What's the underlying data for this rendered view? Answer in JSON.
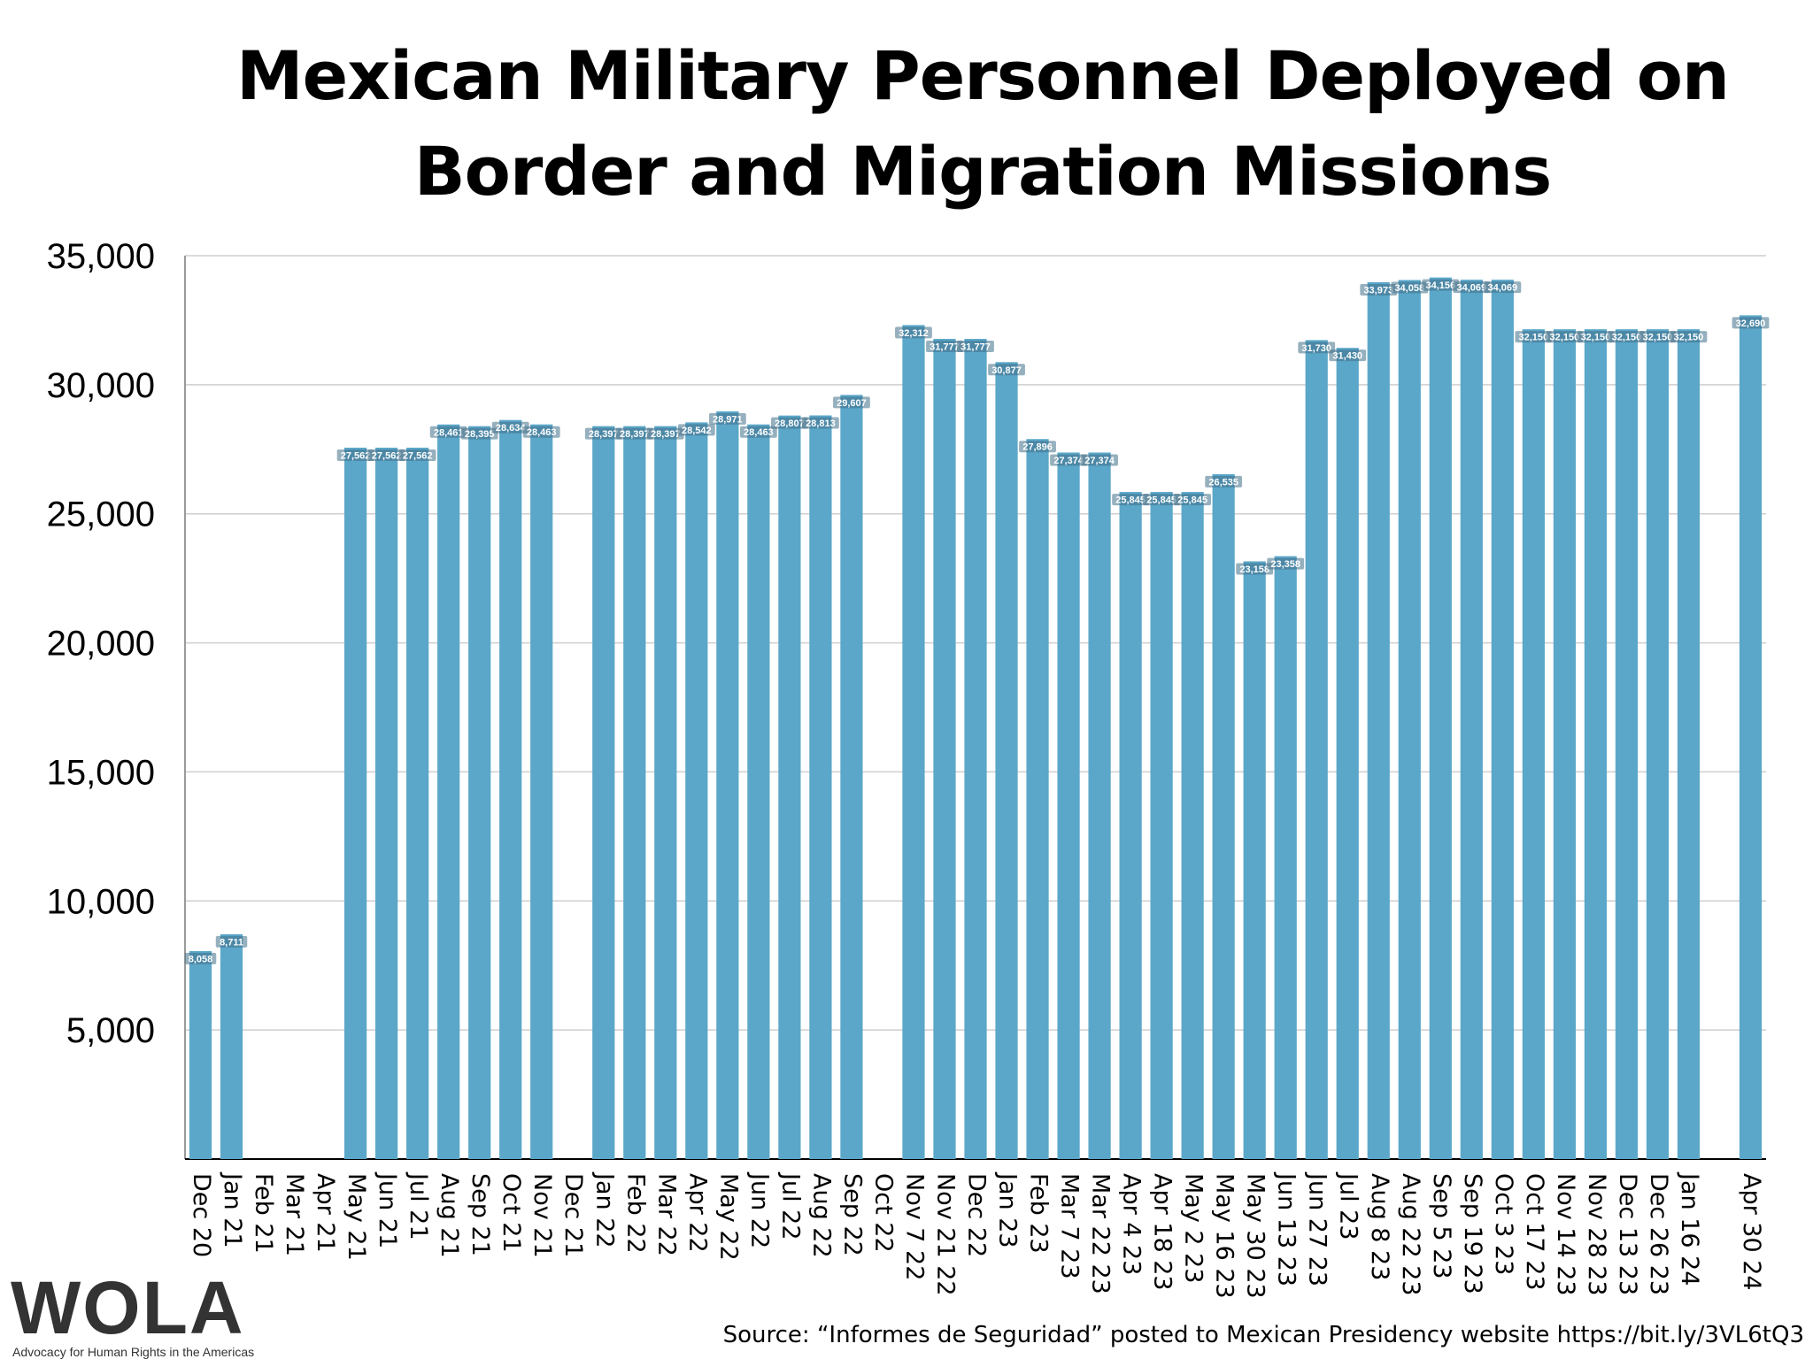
{
  "chart_data": {
    "type": "bar",
    "title_lines": [
      "Mexican Military Personnel Deployed on",
      "Border and Migration Missions"
    ],
    "ylim": [
      0,
      35000
    ],
    "yticks": [
      "5,000",
      "10,000",
      "15,000",
      "20,000",
      "25,000",
      "30,000",
      "35,000"
    ],
    "ytick_values": [
      5000,
      10000,
      15000,
      20000,
      25000,
      30000,
      35000
    ],
    "grid": true,
    "bar_color": "#5ba7c9",
    "categories": [
      "Dec 20",
      "Jan 21",
      "Feb 21",
      "Mar 21",
      "Apr 21",
      "May 21",
      "Jun 21",
      "Jul 21",
      "Aug 21",
      "Sep 21",
      "Oct 21",
      "Nov 21",
      "Dec 21",
      "Jan 22",
      "Feb 22",
      "Mar 22",
      "Apr 22",
      "May 22",
      "Jun 22",
      "Jul 22",
      "Aug 22",
      "Sep 22",
      "Oct 22",
      "Nov 7 22",
      "Nov 21 22",
      "Dec 22",
      "Jan 23",
      "Feb 23",
      "Mar 7 23",
      "Mar 22 23",
      "Apr 4 23",
      "Apr 18 23",
      "May 2 23",
      "May 16 23",
      "May 30 23",
      "Jun 13 23",
      "Jun 27 23",
      "Jul 23",
      "Aug 8 23",
      "Aug 22 23",
      "Sep 5 23",
      "Sep 19 23",
      "Oct 3 23",
      "Oct 17 23",
      "Nov 14 23",
      "Nov 28 23",
      "Dec 13 23",
      "Dec 26 23",
      "Jan 16 24",
      "",
      "Apr 30 24"
    ],
    "values": [
      8058,
      8711,
      null,
      null,
      null,
      27562,
      27562,
      27562,
      28461,
      28395,
      28634,
      28463,
      null,
      28397,
      28397,
      28397,
      28542,
      28971,
      28463,
      28807,
      28813,
      29607,
      null,
      32312,
      31777,
      31777,
      30877,
      27896,
      27374,
      27374,
      25845,
      25845,
      25845,
      26535,
      23158,
      23358,
      31730,
      31430,
      33973,
      34058,
      34156,
      34069,
      34069,
      32150,
      32150,
      32150,
      32150,
      32150,
      32150,
      null,
      32690
    ],
    "labels": [
      "8,058",
      "8,711",
      "",
      "",
      "",
      "27,562",
      "27,562",
      "27,562",
      "28,461",
      "28,395",
      "28,634",
      "28,463",
      "",
      "28,397",
      "28,397",
      "28,397",
      "28,542",
      "28,971",
      "28,463",
      "28,807",
      "28,813",
      "29,607",
      "",
      "32,312",
      "31,777",
      "31,777",
      "30,877",
      "27,896",
      "27,374",
      "27,374",
      "25,845",
      "25,845",
      "25,845",
      "26,535",
      "23,158",
      "23,358",
      "31,730",
      "31,430",
      "33,973",
      "34,058",
      "34,156",
      "34,069",
      "34,069",
      "32,150",
      "32,150",
      "32,150",
      "32,150",
      "32,150",
      "32,150",
      "",
      "32,690"
    ]
  },
  "logo": {
    "word": "WOLA",
    "tagline": "Advocacy for Human Rights in the Americas"
  },
  "source": "Source: “Informes de Seguridad” posted to Mexican Presidency website https://bit.ly/3VL6tQ3"
}
